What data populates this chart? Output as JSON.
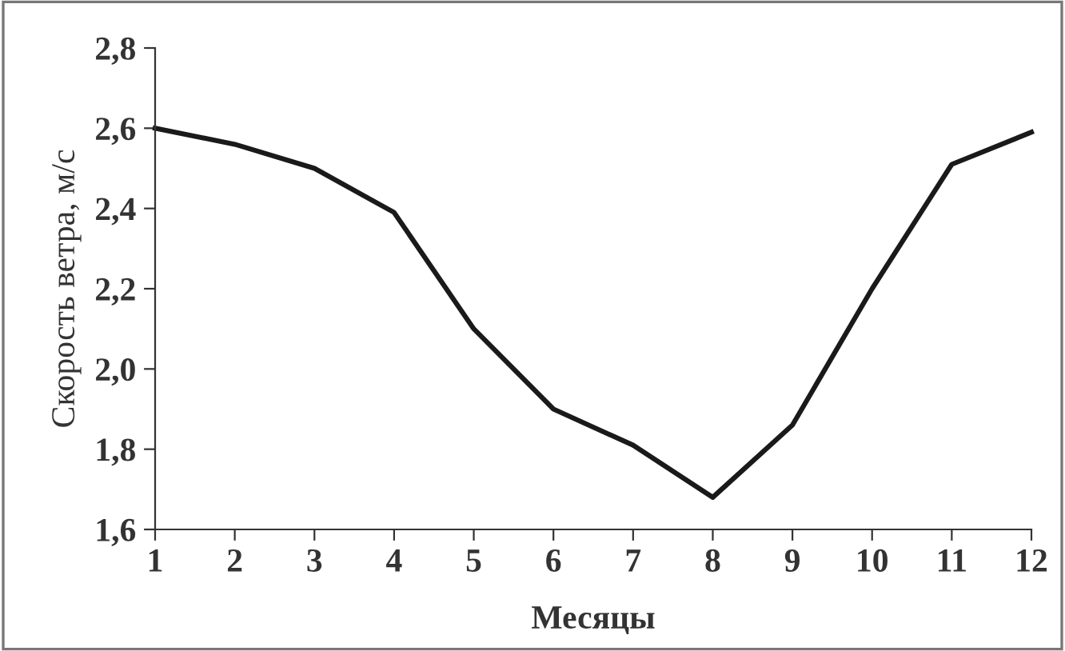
{
  "chart_data": {
    "type": "line",
    "xlabel": "Месяцы",
    "ylabel": "Скорость ветра, м/с",
    "x": [
      1,
      2,
      3,
      4,
      5,
      6,
      7,
      8,
      9,
      10,
      11,
      12
    ],
    "series": [
      {
        "color": "#1a1a1a",
        "values": [
          2.6,
          2.56,
          2.5,
          2.39,
          2.1,
          1.9,
          1.81,
          1.68,
          1.86,
          2.2,
          2.51,
          2.59
        ]
      }
    ],
    "xlim": [
      1,
      12
    ],
    "xticks": [
      1,
      2,
      3,
      4,
      5,
      6,
      7,
      8,
      9,
      10,
      11,
      12
    ],
    "ylim": [
      1.6,
      2.8
    ],
    "yticks": [
      {
        "value": 1.6,
        "label": "1,6"
      },
      {
        "value": 1.8,
        "label": "1,8"
      },
      {
        "value": 2.0,
        "label": "2,0"
      },
      {
        "value": 2.2,
        "label": "2,2"
      },
      {
        "value": 2.4,
        "label": "2,4"
      },
      {
        "value": 2.6,
        "label": "2,6"
      },
      {
        "value": 2.8,
        "label": "2,8"
      }
    ],
    "grid": false,
    "legend": false,
    "marker": "none",
    "line_style": "solid"
  }
}
